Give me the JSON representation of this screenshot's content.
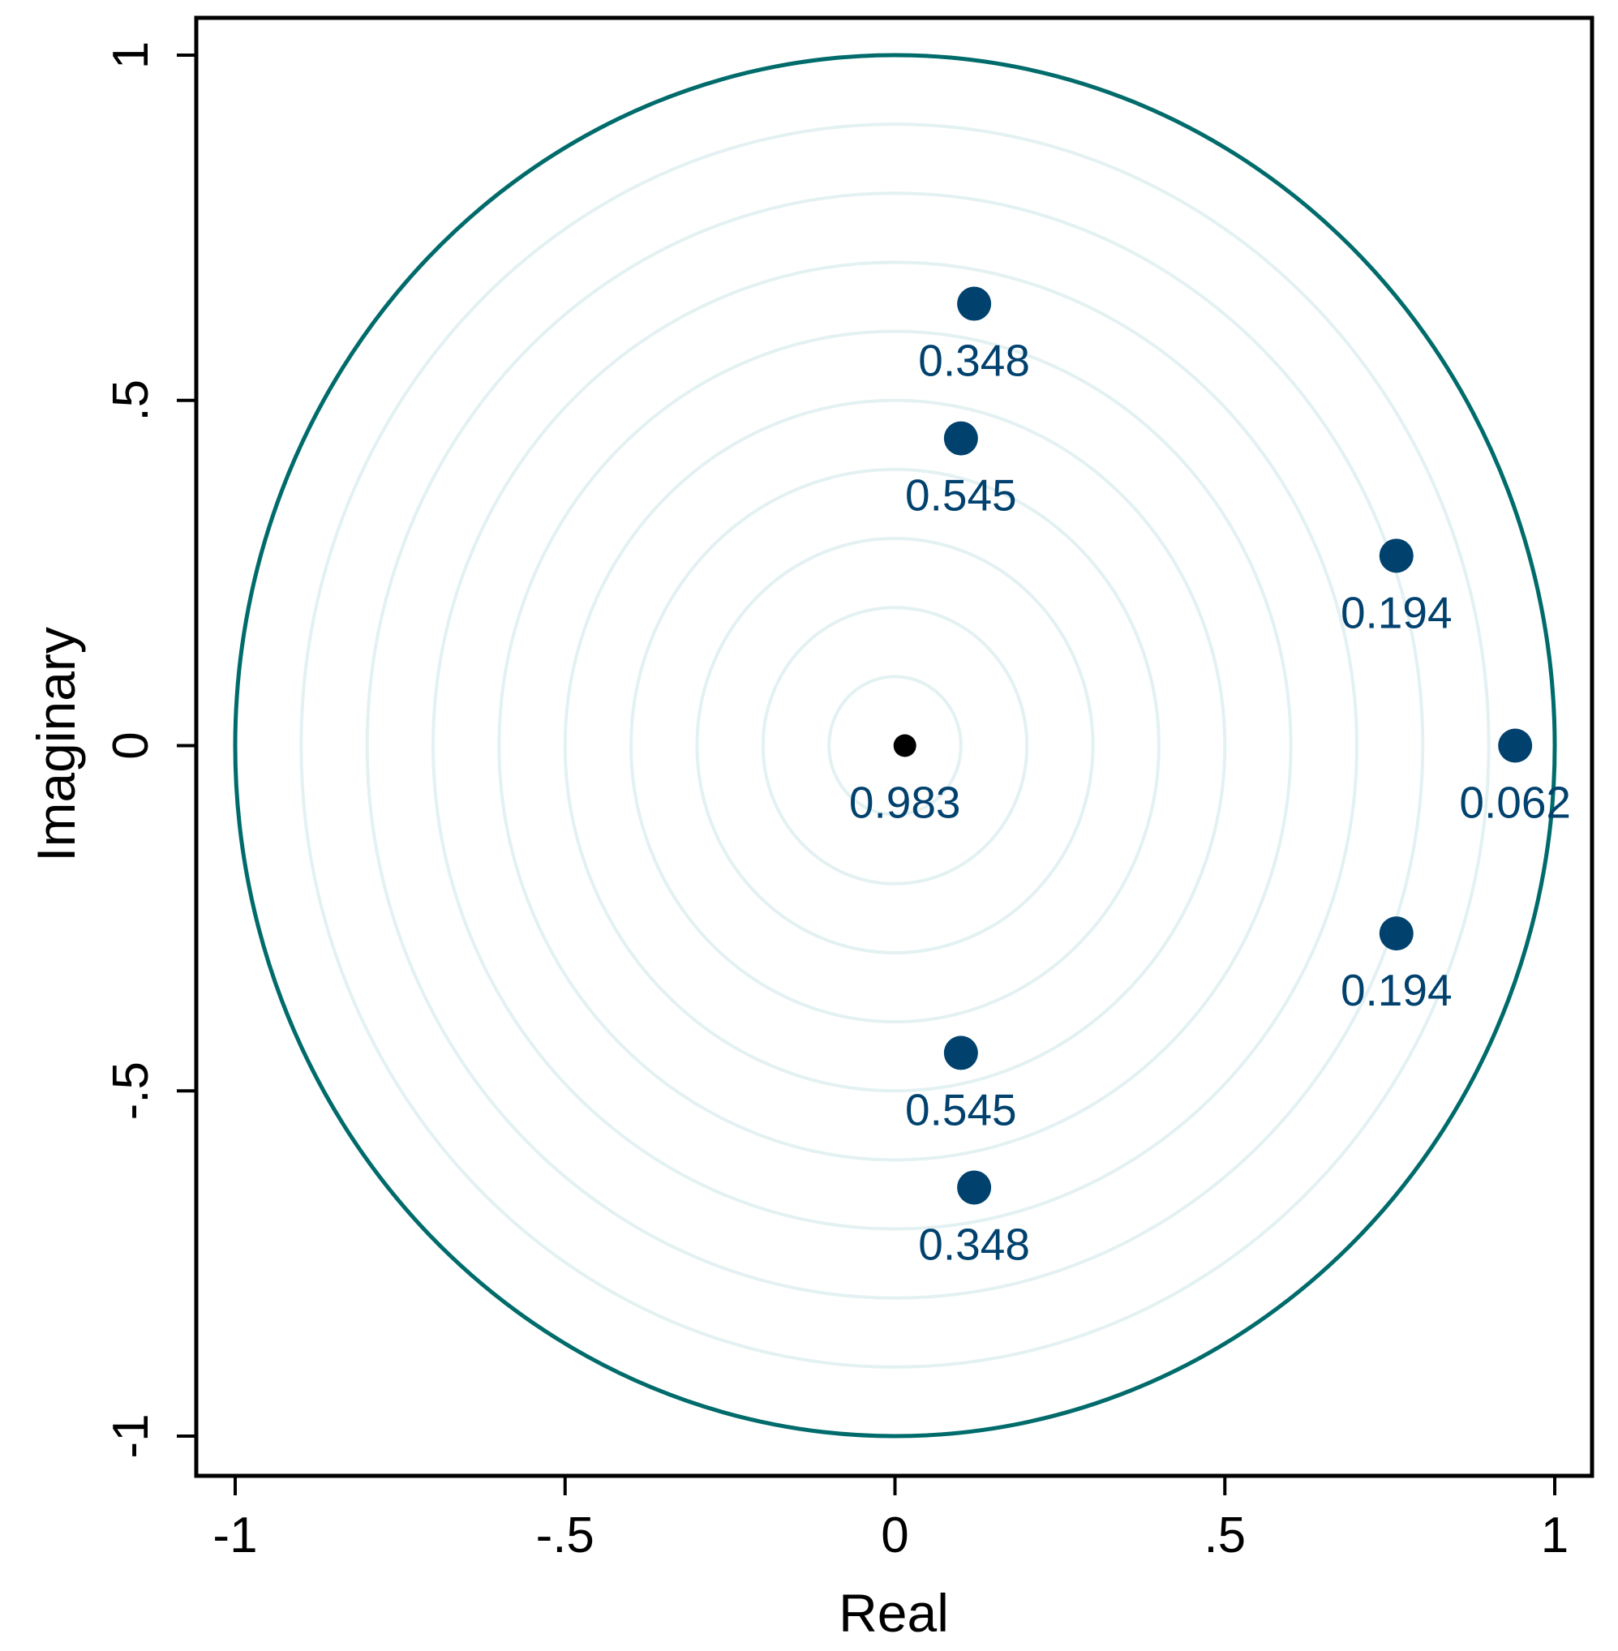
{
  "chart_data": {
    "type": "scatter",
    "xlabel": "Real",
    "ylabel": "Imaginary",
    "xlim": [
      -1,
      1
    ],
    "ylim": [
      -1,
      1
    ],
    "xticks": [
      {
        "v": -1,
        "label": "-1"
      },
      {
        "v": -0.5,
        "label": "-.5"
      },
      {
        "v": 0,
        "label": "0"
      },
      {
        "v": 0.5,
        "label": ".5"
      },
      {
        "v": 1,
        "label": "1"
      }
    ],
    "yticks": [
      {
        "v": -1,
        "label": "-1"
      },
      {
        "v": -0.5,
        "label": "-.5"
      },
      {
        "v": 0,
        "label": "0"
      },
      {
        "v": 0.5,
        "label": ".5"
      },
      {
        "v": 1,
        "label": "1"
      }
    ],
    "grid": false,
    "unit_circle": {
      "radius": 1,
      "color": "#006b6b"
    },
    "concentric_rings": {
      "radii": [
        0.1,
        0.2,
        0.3,
        0.4,
        0.5,
        0.6,
        0.7,
        0.8,
        0.9
      ],
      "color": "#e3f1f2"
    },
    "colors": {
      "points": "#00416e",
      "origin_point": "#000000"
    },
    "points": [
      {
        "x": 0.12,
        "y": 0.64,
        "label": "0.348"
      },
      {
        "x": 0.1,
        "y": 0.445,
        "label": "0.545"
      },
      {
        "x": 0.76,
        "y": 0.275,
        "label": "0.194"
      },
      {
        "x": 0.94,
        "y": 0.0,
        "label": "0.062"
      },
      {
        "x": 0.76,
        "y": -0.272,
        "label": "0.194"
      },
      {
        "x": 0.1,
        "y": -0.445,
        "label": "0.545"
      },
      {
        "x": 0.12,
        "y": -0.64,
        "label": "0.348"
      },
      {
        "x": 0.015,
        "y": 0.0,
        "label": "0.983",
        "origin": true
      }
    ]
  }
}
